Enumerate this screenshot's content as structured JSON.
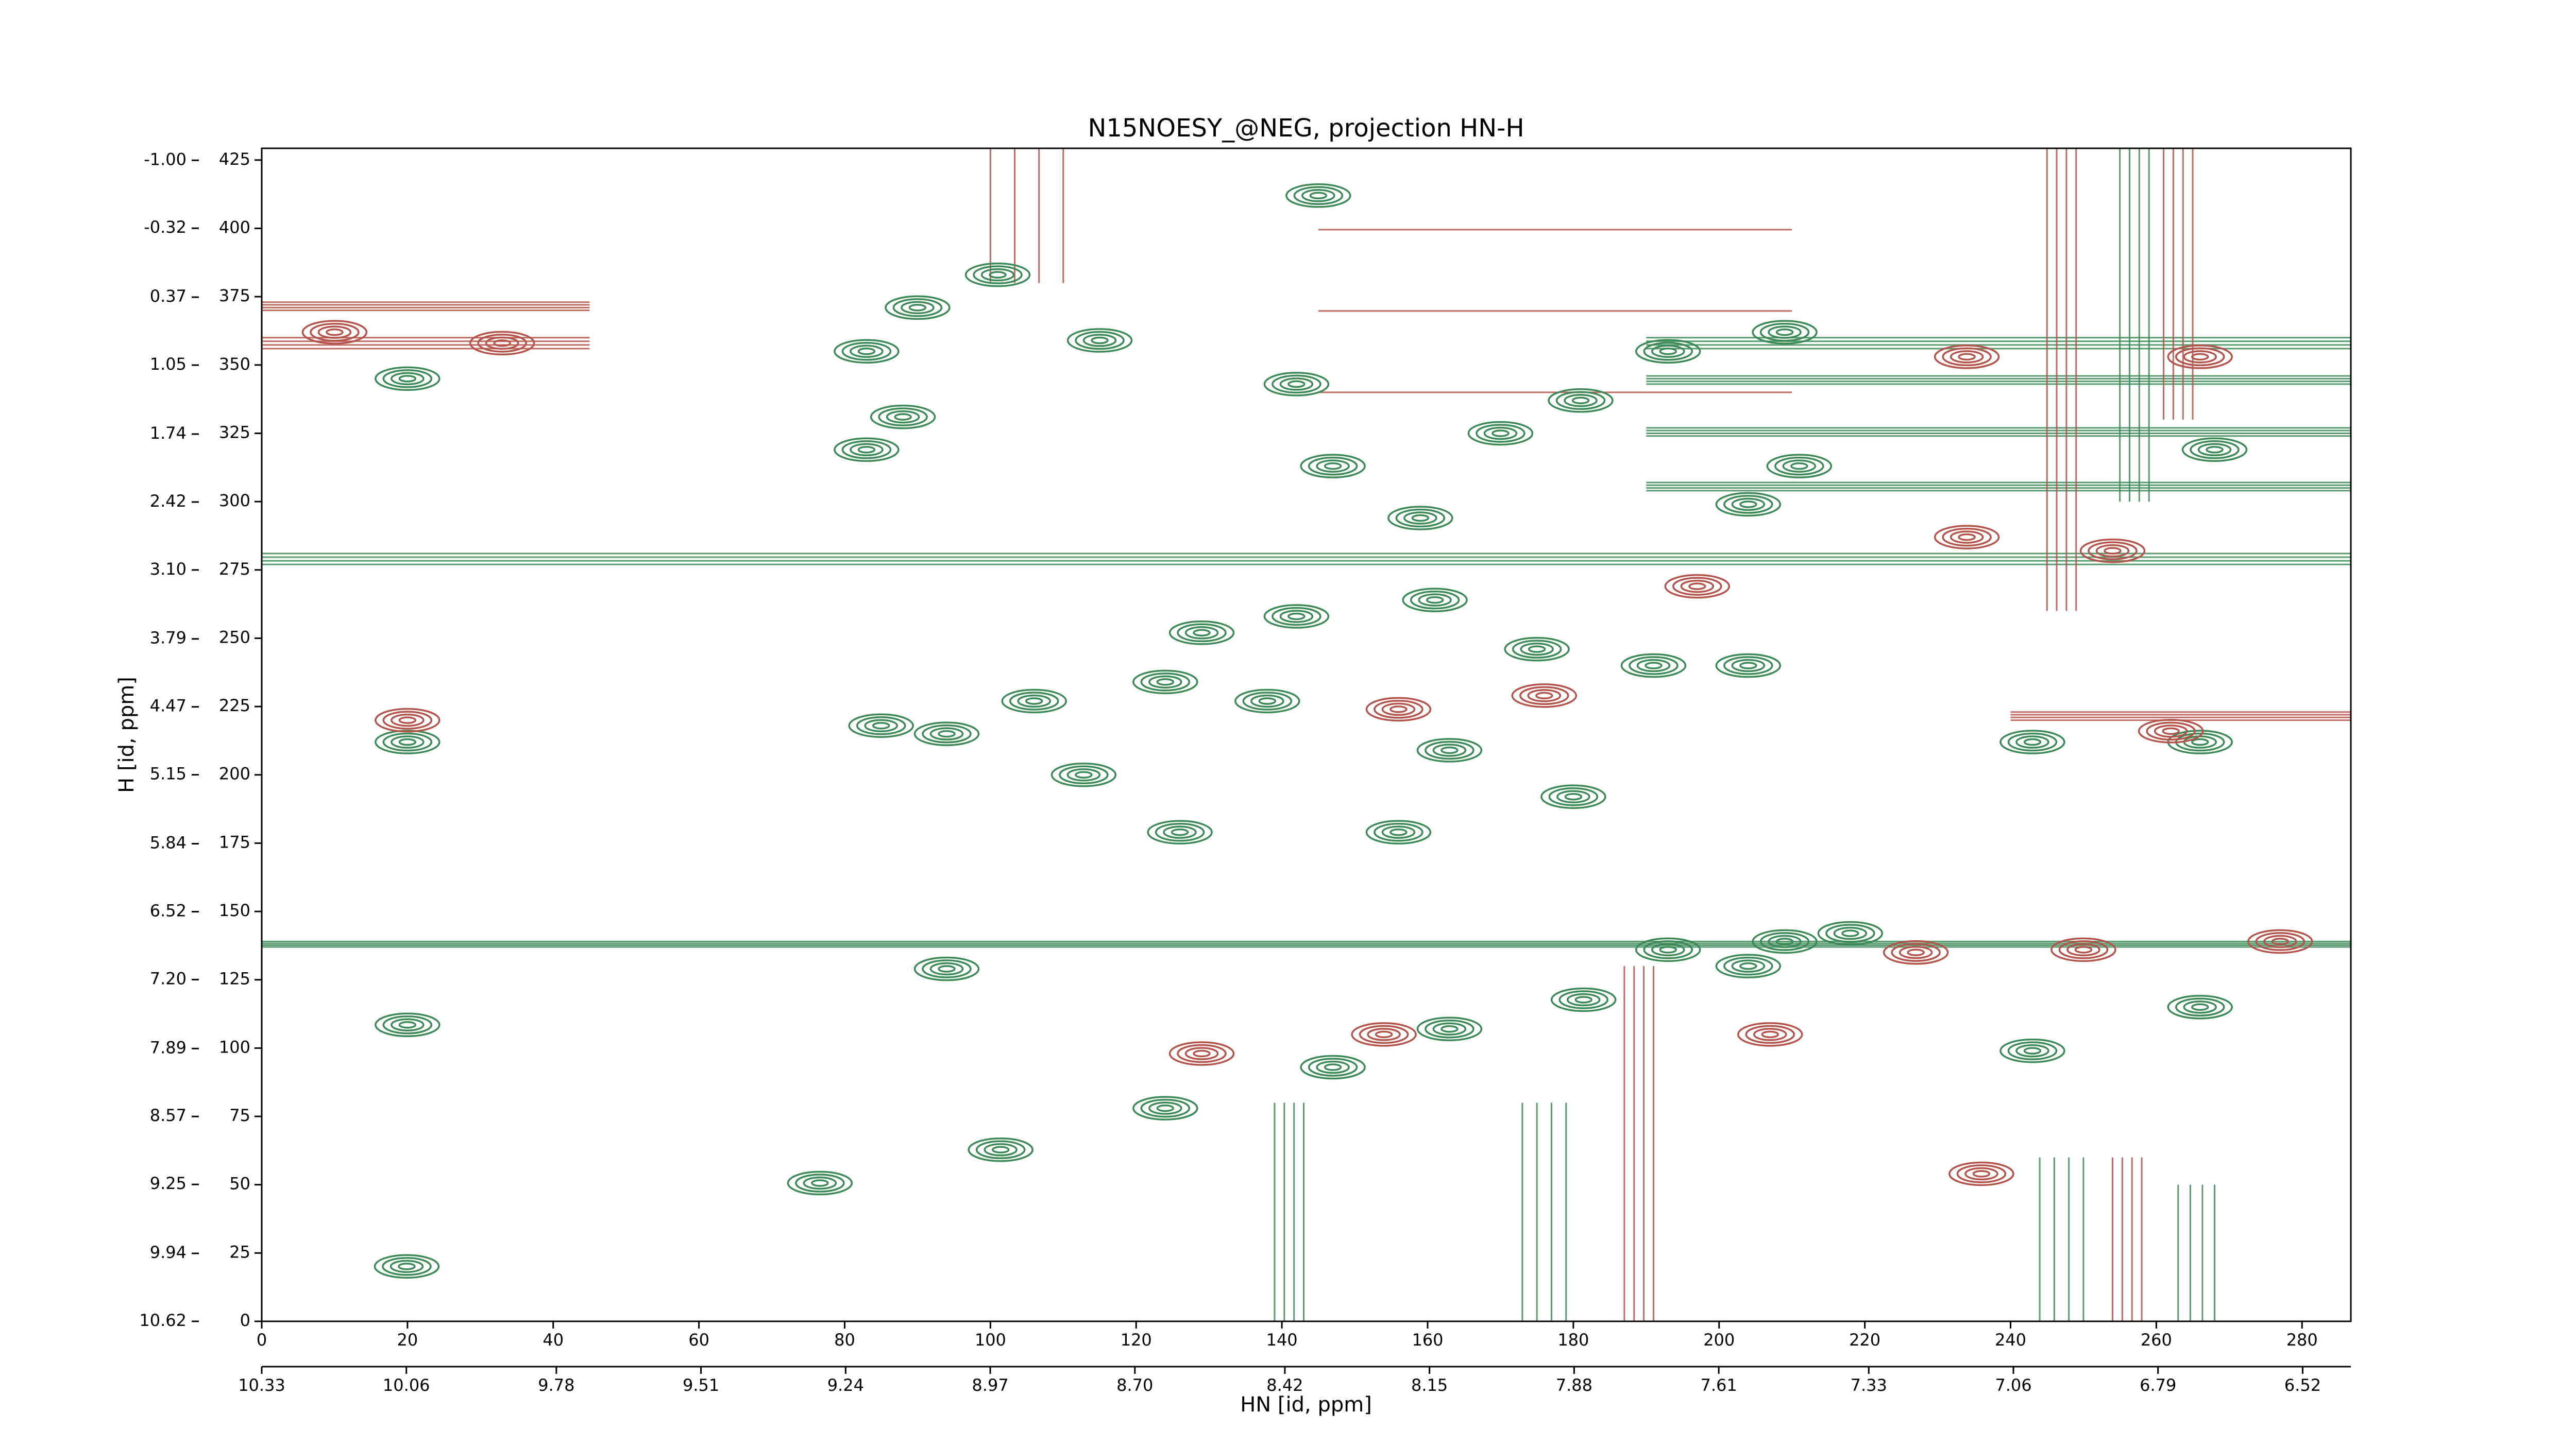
{
  "chart_data": {
    "type": "contour",
    "title": "N15NOESY_@NEG, projection HN-H",
    "xlabel": "HN [id, ppm]",
    "ylabel": "H [id, ppm]",
    "xlim": [
      0,
      286.7
    ],
    "xticks": [
      0,
      20,
      40,
      60,
      80,
      100,
      120,
      140,
      160,
      180,
      200,
      220,
      240,
      260,
      280
    ],
    "x2lim": [
      10.33,
      6.43
    ],
    "x2ticks": [
      10.33,
      10.06,
      9.78,
      9.51,
      9.24,
      8.97,
      {
        "value": 8.7,
        "label": "8.70"
      },
      8.42,
      8.15,
      7.88,
      7.61,
      7.33,
      7.06,
      6.79,
      6.52
    ],
    "ylim": [
      0,
      429.3
    ],
    "yticks": [
      0,
      25,
      50,
      75,
      100,
      125,
      150,
      175,
      200,
      225,
      250,
      275,
      300,
      325,
      350,
      375,
      400,
      425
    ],
    "y2lim": [
      10.62,
      -1.12
    ],
    "y2ticks": [
      10.62,
      9.94,
      9.25,
      8.57,
      7.89,
      {
        "value": 7.2,
        "label": "7.20"
      },
      6.52,
      5.84,
      5.15,
      4.47,
      3.79,
      {
        "value": 3.1,
        "label": "3.10"
      },
      2.42,
      1.74,
      1.05,
      0.37,
      -0.32,
      {
        "value": -1,
        "label": "-1.00"
      }
    ],
    "series": [
      {
        "color": "#3b8a56",
        "x": [
          19.9,
          20,
          20,
          20,
          76.6,
          101.4,
          124,
          147,
          163,
          181.4,
          204,
          218,
          85,
          94,
          112.8,
          126,
          156,
          180,
          243,
          266,
          101,
          90,
          83,
          83,
          88,
          115,
          142,
          147,
          159,
          170,
          181,
          193,
          209,
          211,
          129,
          142,
          161,
          175,
          191,
          124,
          106,
          138,
          204,
          209,
          266,
          243,
          94,
          193,
          163,
          145,
          268,
          204
        ],
        "y": [
          20.1,
          212,
          108.5,
          345,
          50.6,
          62.8,
          78,
          93,
          107,
          117.7,
          130,
          142,
          218,
          215,
          200,
          179,
          179,
          192,
          212,
          212,
          383,
          371,
          355,
          319,
          331,
          359,
          343,
          313,
          294,
          325,
          337,
          355,
          362,
          313,
          252,
          258,
          264,
          246,
          240,
          234,
          227,
          227,
          240,
          139,
          115,
          99,
          129,
          136,
          209,
          412,
          319,
          299
        ]
      },
      {
        "color": "#b5524a",
        "x": [
          156,
          176,
          197,
          234,
          266,
          234,
          254,
          227,
          250,
          277,
          129,
          154,
          207,
          262,
          236,
          10,
          33,
          20
        ],
        "y": [
          224,
          229,
          269,
          353,
          353,
          287,
          282,
          135,
          136,
          139,
          98,
          105,
          105,
          216,
          54,
          362,
          358,
          220
        ]
      }
    ],
    "ridges": [
      {
        "color": "#3b8a56",
        "x": [
          0,
          286.7
        ],
        "y": [
          277,
          281
        ]
      },
      {
        "color": "#3b8a56",
        "x": [
          0,
          286.7
        ],
        "y": [
          137,
          139
        ]
      },
      {
        "color": "#3b8a56",
        "x": [
          190,
          286.7
        ],
        "y": [
          356,
          360
        ]
      },
      {
        "color": "#3b8a56",
        "x": [
          190,
          286.7
        ],
        "y": [
          343,
          346
        ]
      },
      {
        "color": "#3b8a56",
        "x": [
          190,
          286.7
        ],
        "y": [
          324,
          327
        ]
      },
      {
        "color": "#3b8a56",
        "x": [
          190,
          286.7
        ],
        "y": [
          304,
          307
        ]
      },
      {
        "color": "#b5524a",
        "x": [
          0,
          45
        ],
        "y": [
          370,
          373
        ]
      },
      {
        "color": "#b5524a",
        "x": [
          0,
          45
        ],
        "y": [
          356,
          360
        ]
      },
      {
        "color": "#b5524a",
        "x": [
          240,
          286.7
        ],
        "y": [
          220,
          223
        ]
      },
      {
        "color": "#b5524a",
        "x": [
          245,
          249
        ],
        "y": [
          260,
          429.3
        ]
      },
      {
        "color": "#b5524a",
        "x": [
          261,
          265
        ],
        "y": [
          330,
          429.3
        ]
      },
      {
        "color": "#3b8a56",
        "x": [
          255,
          259
        ],
        "y": [
          300,
          429.3
        ]
      },
      {
        "color": "#b5524a",
        "x": [
          100,
          110
        ],
        "y": [
          380,
          429.3
        ]
      },
      {
        "color": "#b5524a",
        "x": [
          145,
          210
        ],
        "y": [
          340,
          429.3
        ]
      },
      {
        "color": "#3b8a56",
        "x": [
          139,
          143
        ],
        "y": [
          0,
          80
        ]
      },
      {
        "color": "#3b8a56",
        "x": [
          173,
          179
        ],
        "y": [
          0,
          80
        ]
      },
      {
        "color": "#b5524a",
        "x": [
          187,
          191
        ],
        "y": [
          0,
          130
        ]
      },
      {
        "color": "#3b8a56",
        "x": [
          244,
          250
        ],
        "y": [
          0,
          60
        ]
      },
      {
        "color": "#b5524a",
        "x": [
          254,
          258
        ],
        "y": [
          0,
          60
        ]
      },
      {
        "color": "#3b8a56",
        "x": [
          263,
          268
        ],
        "y": [
          0,
          50
        ]
      }
    ]
  }
}
